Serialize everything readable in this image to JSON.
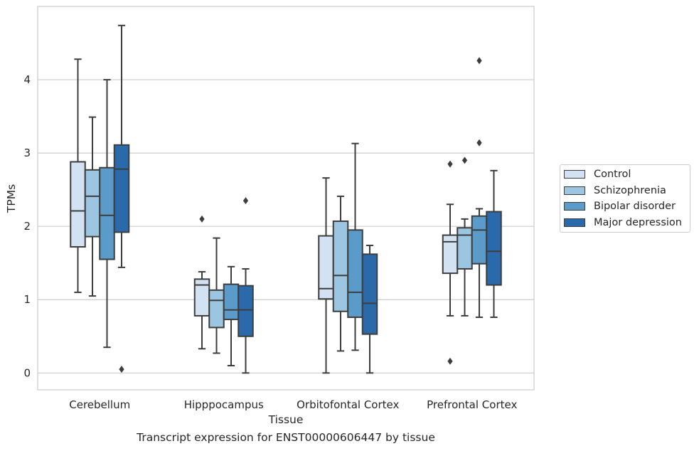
{
  "caption": "Transcript expression for ENST00000606447 by tissue",
  "chart_data": {
    "type": "box",
    "xlabel": "Tissue",
    "ylabel": "TPMs",
    "ylim": [
      -0.23,
      5.0
    ],
    "yticks": [
      0,
      1,
      2,
      3,
      4
    ],
    "grid": "horizontal",
    "legend_position": "right",
    "categories": [
      "Cerebellum",
      "Hipppocampus",
      "Orbitofontal Cortex",
      "Prefrontal Cortex"
    ],
    "series": [
      {
        "name": "Control",
        "color": "#d3e2f2",
        "boxes": [
          {
            "whisker_low": 1.1,
            "q1": 1.72,
            "median": 2.21,
            "q3": 2.88,
            "whisker_high": 4.28,
            "outliers": []
          },
          {
            "whisker_low": 0.33,
            "q1": 0.78,
            "median": 1.2,
            "q3": 1.28,
            "whisker_high": 1.38,
            "outliers": [
              2.1
            ]
          },
          {
            "whisker_low": 0.0,
            "q1": 1.01,
            "median": 1.15,
            "q3": 1.87,
            "whisker_high": 2.66,
            "outliers": []
          },
          {
            "whisker_low": 0.78,
            "q1": 1.36,
            "median": 1.79,
            "q3": 1.88,
            "whisker_high": 2.3,
            "outliers": [
              2.85,
              0.16
            ]
          }
        ]
      },
      {
        "name": "Schizophrenia",
        "color": "#9bc5e0",
        "boxes": [
          {
            "whisker_low": 1.05,
            "q1": 1.86,
            "median": 2.41,
            "q3": 2.77,
            "whisker_high": 3.49,
            "outliers": []
          },
          {
            "whisker_low": 0.27,
            "q1": 0.62,
            "median": 0.99,
            "q3": 1.13,
            "whisker_high": 1.84,
            "outliers": []
          },
          {
            "whisker_low": 0.3,
            "q1": 0.84,
            "median": 1.33,
            "q3": 2.07,
            "whisker_high": 2.41,
            "outliers": []
          },
          {
            "whisker_low": 0.78,
            "q1": 1.42,
            "median": 1.88,
            "q3": 1.98,
            "whisker_high": 2.1,
            "outliers": [
              2.9
            ]
          }
        ]
      },
      {
        "name": "Bipolar disorder",
        "color": "#5a9bc9",
        "boxes": [
          {
            "whisker_low": 0.35,
            "q1": 1.55,
            "median": 2.15,
            "q3": 2.8,
            "whisker_high": 4.0,
            "outliers": []
          },
          {
            "whisker_low": 0.1,
            "q1": 0.73,
            "median": 0.86,
            "q3": 1.21,
            "whisker_high": 1.45,
            "outliers": []
          },
          {
            "whisker_low": 0.31,
            "q1": 0.76,
            "median": 1.1,
            "q3": 1.95,
            "whisker_high": 3.13,
            "outliers": []
          },
          {
            "whisker_low": 0.76,
            "q1": 1.49,
            "median": 1.95,
            "q3": 2.14,
            "whisker_high": 2.24,
            "outliers": [
              4.26,
              3.14
            ]
          }
        ]
      },
      {
        "name": "Major depression",
        "color": "#2a6aaa",
        "boxes": [
          {
            "whisker_low": 1.44,
            "q1": 1.92,
            "median": 2.78,
            "q3": 3.11,
            "whisker_high": 4.74,
            "outliers": [
              0.05
            ]
          },
          {
            "whisker_low": 0.0,
            "q1": 0.5,
            "median": 0.86,
            "q3": 1.19,
            "whisker_high": 1.42,
            "outliers": [
              2.35
            ]
          },
          {
            "whisker_low": 0.0,
            "q1": 0.53,
            "median": 0.95,
            "q3": 1.62,
            "whisker_high": 1.74,
            "outliers": []
          },
          {
            "whisker_low": 0.76,
            "q1": 1.2,
            "median": 1.66,
            "q3": 2.2,
            "whisker_high": 2.76,
            "outliers": []
          }
        ]
      }
    ]
  }
}
